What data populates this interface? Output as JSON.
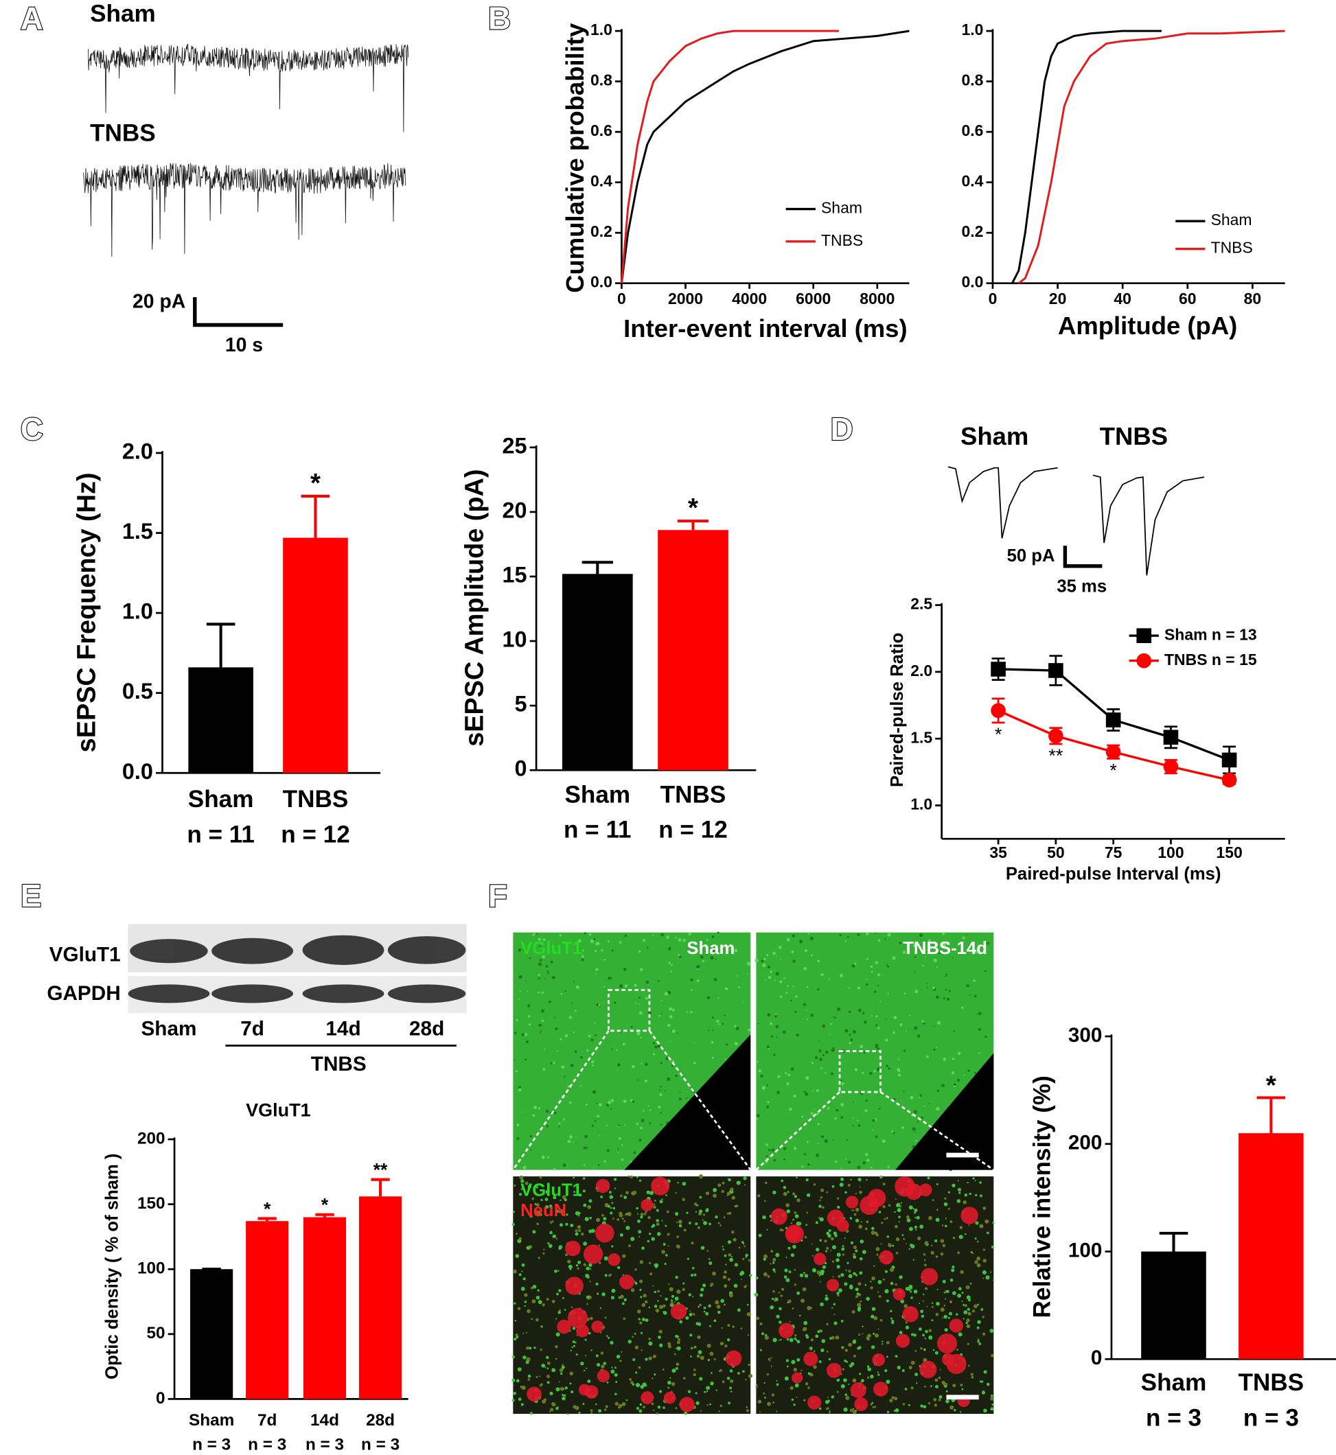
{
  "panel_labels": [
    "A",
    "B",
    "C",
    "D",
    "E",
    "F"
  ],
  "panel_a": {
    "groups": [
      "Sham",
      "TNBS"
    ],
    "scale_y": "20 pA",
    "scale_x": "10 s"
  },
  "panel_d_traces": {
    "groups": [
      "Sham",
      "TNBS"
    ],
    "scale_y": "50 pA",
    "scale_x": "35 ms"
  },
  "panel_e_blot": {
    "rows": [
      "VGluT1",
      "GAPDH"
    ],
    "lanes": [
      "Sham",
      "7d",
      "14d",
      "28d"
    ],
    "group": "TNBS"
  },
  "panel_f_images": {
    "top_labels": [
      "VGluT1",
      "Sham",
      "TNBS-14d"
    ],
    "bottom_labels": [
      "VGluT1",
      "NeuN"
    ]
  },
  "chart_data": [
    {
      "type": "line",
      "ylabel": "Cumulative probability",
      "xlabel": "Inter-event interval (ms)",
      "xlim": [
        0,
        9000
      ],
      "xticks": [
        0,
        2000,
        4000,
        6000,
        8000
      ],
      "ylim": [
        0,
        1
      ],
      "yticks": [
        {
          "value": 0,
          "label": "0.0"
        },
        0.2,
        0.4,
        0.6,
        0.8,
        {
          "value": 1,
          "label": "1.0"
        }
      ],
      "legend": "lower right",
      "series": [
        {
          "name": "Sham",
          "color": "#000000",
          "x": [
            0,
            200,
            500,
            800,
            1000,
            1500,
            2000,
            2500,
            3000,
            3500,
            4000,
            5000,
            6000,
            7000,
            8000,
            9000
          ],
          "values": [
            0,
            0.2,
            0.4,
            0.55,
            0.6,
            0.66,
            0.72,
            0.76,
            0.8,
            0.84,
            0.87,
            0.92,
            0.96,
            0.97,
            0.98,
            1.0
          ]
        },
        {
          "name": "TNBS",
          "color": "#e41a1c",
          "x": [
            0,
            200,
            500,
            800,
            1000,
            1500,
            2000,
            2500,
            3000,
            3500,
            6800
          ],
          "values": [
            0,
            0.3,
            0.55,
            0.72,
            0.8,
            0.88,
            0.94,
            0.97,
            0.99,
            1.0,
            1.0
          ]
        }
      ]
    },
    {
      "type": "line",
      "xlabel": "Amplitude (pA)",
      "xlim": [
        0,
        90
      ],
      "xticks": [
        0,
        20,
        40,
        60,
        80
      ],
      "ylim": [
        0,
        1
      ],
      "yticks": [
        {
          "value": 0,
          "label": "0.0"
        },
        0.2,
        0.4,
        0.6,
        0.8,
        {
          "value": 1,
          "label": "1.0"
        }
      ],
      "legend": "lower right",
      "series": [
        {
          "name": "Sham",
          "color": "#000000",
          "x": [
            6,
            8,
            10,
            12,
            14,
            16,
            18,
            20,
            25,
            30,
            40,
            52
          ],
          "values": [
            0,
            0.05,
            0.2,
            0.4,
            0.6,
            0.8,
            0.9,
            0.95,
            0.98,
            0.99,
            1.0,
            1.0
          ]
        },
        {
          "name": "TNBS",
          "color": "#e41a1c",
          "x": [
            8,
            10,
            14,
            18,
            20,
            22,
            25,
            30,
            35,
            40,
            50,
            60,
            70,
            90
          ],
          "values": [
            0,
            0.02,
            0.15,
            0.4,
            0.55,
            0.7,
            0.8,
            0.9,
            0.95,
            0.96,
            0.97,
            0.99,
            0.99,
            1.0
          ]
        }
      ]
    },
    {
      "type": "bar",
      "ylabel": "sEPSC Frequency (Hz)",
      "categories": [
        "Sham",
        "TNBS"
      ],
      "n_labels": [
        "n = 11",
        "n = 12"
      ],
      "values": [
        0.66,
        1.47
      ],
      "errors": [
        0.27,
        0.26
      ],
      "colors": [
        "#000000",
        "#ff0000"
      ],
      "significance": [
        null,
        "*"
      ],
      "ylim": [
        0,
        2
      ],
      "yticks": [
        {
          "value": 0,
          "label": "0.0"
        },
        0.5,
        {
          "value": 1,
          "label": "1.0"
        },
        1.5,
        {
          "value": 2,
          "label": "2.0"
        }
      ]
    },
    {
      "type": "bar",
      "ylabel": "sEPSC Amplitude (pA)",
      "categories": [
        "Sham",
        "TNBS"
      ],
      "n_labels": [
        "n = 11",
        "n = 12"
      ],
      "values": [
        15.2,
        18.6
      ],
      "errors": [
        0.9,
        0.7
      ],
      "colors": [
        "#000000",
        "#ff0000"
      ],
      "significance": [
        null,
        "*"
      ],
      "ylim": [
        0,
        25
      ],
      "yticks": [
        0,
        5,
        10,
        15,
        20,
        25
      ]
    },
    {
      "type": "line",
      "ylabel": "Paired-pulse Ratio",
      "xlabel": "Paired-pulse Interval (ms)",
      "categories": [
        "35",
        "50",
        "75",
        "100",
        "150"
      ],
      "ylim": [
        0.75,
        2.5
      ],
      "yticks": [
        {
          "value": 1,
          "label": "1.0"
        },
        1.5,
        {
          "value": 2,
          "label": "2.0"
        },
        2.5
      ],
      "legend": "upper right",
      "series": [
        {
          "name": "Sham n = 13",
          "color": "#000000",
          "marker": "square",
          "values": [
            2.02,
            2.01,
            1.64,
            1.51,
            1.34
          ],
          "errors": [
            0.08,
            0.11,
            0.08,
            0.08,
            0.1
          ]
        },
        {
          "name": "TNBS n = 15",
          "color": "#ff0000",
          "marker": "circle",
          "values": [
            1.71,
            1.52,
            1.4,
            1.29,
            1.19
          ],
          "errors": [
            0.09,
            0.06,
            0.05,
            0.05,
            0.03
          ],
          "significance": [
            "*",
            "**",
            "*",
            null,
            null
          ]
        }
      ]
    },
    {
      "type": "bar",
      "title": "VGluT1",
      "ylabel": "Optic density ( % of sham )",
      "categories": [
        "Sham",
        "7d",
        "14d",
        "28d"
      ],
      "n_labels": [
        "n = 3",
        "n = 3",
        "n = 3",
        "n = 3"
      ],
      "values": [
        100,
        137,
        140,
        156
      ],
      "errors": [
        0,
        2,
        2,
        13
      ],
      "colors": [
        "#000000",
        "#ff0000",
        "#ff0000",
        "#ff0000"
      ],
      "significance": [
        null,
        "*",
        "*",
        "**"
      ],
      "ylim": [
        0,
        200
      ],
      "yticks": [
        0,
        50,
        100,
        150,
        200
      ]
    },
    {
      "type": "bar",
      "ylabel": "Relative intensity (%)",
      "categories": [
        "Sham",
        "TNBS"
      ],
      "n_labels": [
        "n = 3",
        "n = 3"
      ],
      "values": [
        100,
        210
      ],
      "errors": [
        17,
        33
      ],
      "colors": [
        "#000000",
        "#ff0000"
      ],
      "significance": [
        null,
        "*"
      ],
      "ylim": [
        0,
        300
      ],
      "yticks": [
        0,
        100,
        200,
        300
      ]
    }
  ]
}
